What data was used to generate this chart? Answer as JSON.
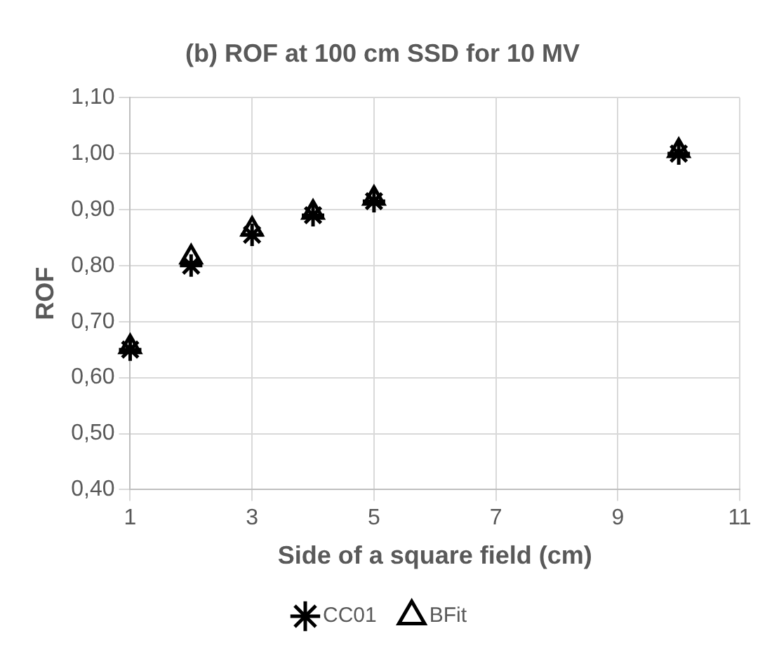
{
  "chart_data": {
    "type": "scatter",
    "title": "(b) ROF at 100 cm SSD for 10 MV",
    "xlabel": "Side of a square field (cm)",
    "ylabel": "ROF",
    "x": [
      1,
      2,
      3,
      4,
      5,
      10
    ],
    "series": [
      {
        "name": "CC01",
        "color": "#000000",
        "marker": "cross",
        "values": [
          0.65,
          0.8,
          0.855,
          0.89,
          0.915,
          1.0
        ]
      },
      {
        "name": "BFit",
        "color": "#000000",
        "marker": "triangle",
        "values": [
          0.655,
          0.815,
          0.865,
          0.895,
          0.92,
          1.005
        ]
      }
    ],
    "xlim": [
      1,
      11
    ],
    "xticks": [
      1,
      3,
      5,
      7,
      9,
      11
    ],
    "ylim": [
      0.4,
      1.1
    ],
    "yticks": [
      {
        "value": 0.4,
        "label": "0,40"
      },
      {
        "value": 0.5,
        "label": "0,50"
      },
      {
        "value": 0.6,
        "label": "0,60"
      },
      {
        "value": 0.7,
        "label": "0,70"
      },
      {
        "value": 0.8,
        "label": "0,80"
      },
      {
        "value": 0.9,
        "label": "0,90"
      },
      {
        "value": 1.0,
        "label": "1,00"
      },
      {
        "value": 1.1,
        "label": "1,10"
      }
    ],
    "grid": true,
    "legend": "bottom"
  }
}
